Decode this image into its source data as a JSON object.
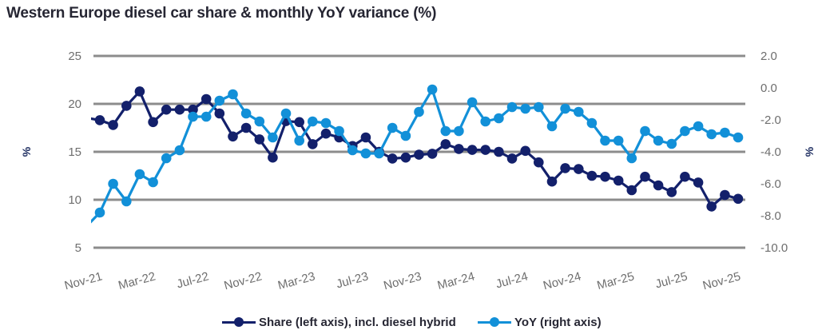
{
  "chart_data": {
    "type": "line",
    "title": "Western Europe diesel car share & monthly YoY variance (%)",
    "x": [
      "Nov-21",
      "Dec-21",
      "Jan-22",
      "Feb-22",
      "Mar-22",
      "Apr-22",
      "May-22",
      "Jun-22",
      "Jul-22",
      "Aug-22",
      "Sep-22",
      "Oct-22",
      "Nov-22",
      "Dec-22",
      "Jan-23",
      "Feb-23",
      "Mar-23",
      "Apr-23",
      "May-23",
      "Jun-23",
      "Jul-23",
      "Aug-23",
      "Sep-23",
      "Oct-23",
      "Nov-23",
      "Dec-23",
      "Jan-24",
      "Feb-24",
      "Mar-24",
      "Apr-24",
      "May-24",
      "Jun-24",
      "Jul-24",
      "Aug-24",
      "Sep-24",
      "Oct-24",
      "Nov-24",
      "Dec-24",
      "Jan-25",
      "Feb-25",
      "Mar-25",
      "Apr-25",
      "May-25",
      "Jun-25",
      "Jul-25",
      "Aug-25",
      "Sep-25",
      "Oct-25",
      "Nov-25"
    ],
    "xtick_labels": [
      "Nov-21",
      "Mar-22",
      "Jul-22",
      "Nov-22",
      "Mar-23",
      "Jul-23",
      "Nov-23",
      "Mar-24",
      "Jul-24",
      "Nov-24",
      "Mar-25",
      "Jul-25",
      "Nov-25"
    ],
    "series": [
      {
        "name": "Share (left axis), incl. diesel hybrid",
        "axis": "left",
        "color": "#13206b",
        "values": [
          18.3,
          17.8,
          19.8,
          21.3,
          18.1,
          19.4,
          19.4,
          19.4,
          20.5,
          19.0,
          16.6,
          17.5,
          16.3,
          14.4,
          18.2,
          18.1,
          15.8,
          16.9,
          16.5,
          15.6,
          16.5,
          15.0,
          14.3,
          14.4,
          14.7,
          14.8,
          15.8,
          15.3,
          15.2,
          15.2,
          15.0,
          14.3,
          15.1,
          13.9,
          11.9,
          13.3,
          13.2,
          12.5,
          12.4,
          12.0,
          11.0,
          12.4,
          11.5,
          10.8,
          12.4,
          11.8,
          9.3,
          10.5,
          10.1
        ]
      },
      {
        "name": "YoY (right axis)",
        "axis": "right",
        "color": "#1290d8",
        "values": [
          -7.8,
          -6.0,
          -7.1,
          -5.4,
          -5.9,
          -4.4,
          -3.9,
          -1.8,
          -1.8,
          -0.8,
          -0.4,
          -1.6,
          -2.1,
          -3.1,
          -1.6,
          -3.3,
          -2.1,
          -2.2,
          -2.7,
          -3.9,
          -4.1,
          -4.1,
          -2.5,
          -3.0,
          -1.5,
          -0.1,
          -2.7,
          -2.7,
          -0.9,
          -2.1,
          -1.9,
          -1.2,
          -1.3,
          -1.2,
          -2.4,
          -1.3,
          -1.5,
          -2.2,
          -3.3,
          -3.3,
          -4.4,
          -2.7,
          -3.3,
          -3.5,
          -2.7,
          -2.4,
          -2.9,
          -2.8,
          -3.1
        ]
      }
    ],
    "left_axis": {
      "label": "%",
      "ylim": [
        5,
        25
      ],
      "ticks": [
        "25",
        "20",
        "15",
        "10",
        "5"
      ],
      "tick_values": [
        25,
        20,
        15,
        10,
        5
      ]
    },
    "right_axis": {
      "label": "%",
      "ylim": [
        -10,
        2
      ],
      "ticks": [
        "2.0",
        "0.0",
        "-2.0",
        "-4.0",
        "-6.0",
        "-8.0",
        "-10.0"
      ],
      "tick_values": [
        2,
        0,
        -2,
        -4,
        -6,
        -8,
        -10
      ]
    },
    "grid": true,
    "gridline_color": "#8c8c8c",
    "legend_position": "bottom"
  },
  "legend": {
    "items": [
      {
        "label": "Share (left axis), incl. diesel hybrid",
        "color": "#13206b"
      },
      {
        "label": "YoY (right axis)",
        "color": "#1290d8"
      }
    ]
  }
}
